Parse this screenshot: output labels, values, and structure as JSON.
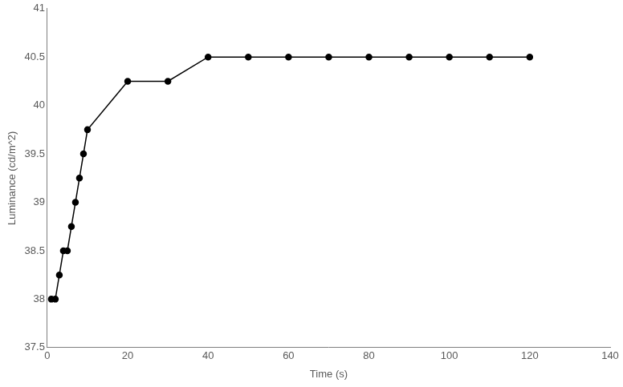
{
  "chart_data": {
    "type": "line",
    "x_label": "Time (s)",
    "y_label": "Luminance (cd/m^2)",
    "x": [
      1,
      2,
      3,
      4,
      5,
      6,
      7,
      8,
      9,
      10,
      20,
      30,
      40,
      50,
      60,
      70,
      80,
      90,
      100,
      110,
      120
    ],
    "values": [
      38,
      38,
      38.25,
      38.5,
      38.5,
      38.75,
      39,
      39.25,
      39.5,
      39.75,
      40.25,
      40.25,
      40.5,
      40.5,
      40.5,
      40.5,
      40.5,
      40.5,
      40.5,
      40.5,
      40.5
    ],
    "color": "#000000",
    "marker": "circle",
    "line_style": "solid",
    "xlim": [
      0,
      140
    ],
    "xticks": [
      0,
      20,
      40,
      60,
      80,
      100,
      120,
      140
    ],
    "ylim": [
      37.5,
      41
    ],
    "yticks": [
      37.5,
      38,
      38.5,
      39,
      39.5,
      40,
      40.5,
      41
    ],
    "grid": false
  }
}
